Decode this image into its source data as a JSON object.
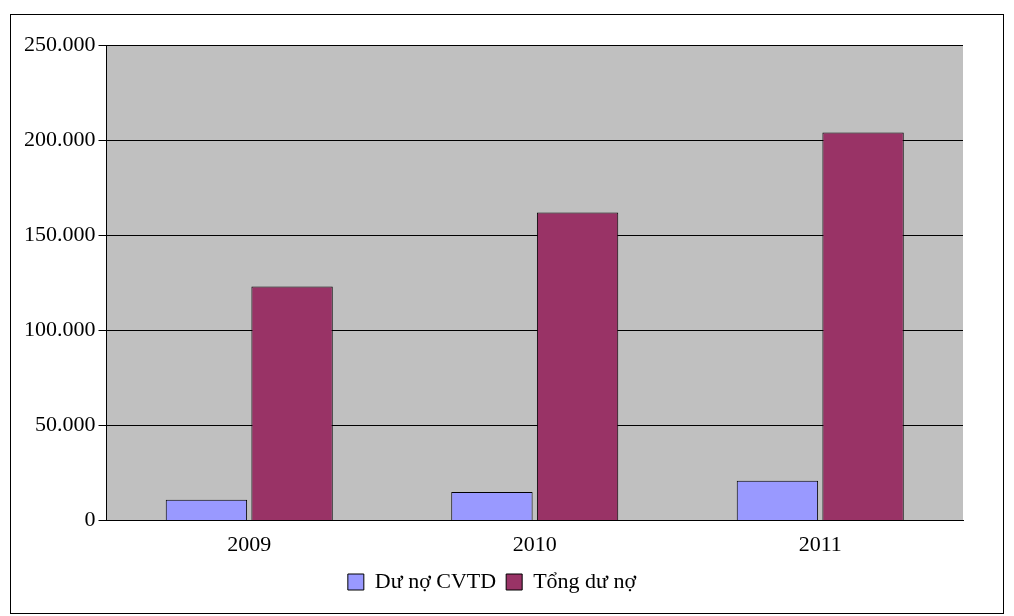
{
  "chart_data": {
    "type": "bar",
    "categories": [
      "2009",
      "2010",
      "2011"
    ],
    "series": [
      {
        "name": "Dư nợ CVTD",
        "color": "#9999ff",
        "values": [
          11000,
          15000,
          21000
        ]
      },
      {
        "name": "Tổng dư nợ",
        "color": "#993366",
        "values": [
          123000,
          162000,
          204000
        ]
      }
    ],
    "ylim": [
      0,
      250000
    ],
    "yticks": [
      {
        "value": 0,
        "label": "0"
      },
      {
        "value": 50000,
        "label": "50.000"
      },
      {
        "value": 100000,
        "label": "100.000"
      },
      {
        "value": 150000,
        "label": "150.000"
      },
      {
        "value": 200000,
        "label": "200.000"
      },
      {
        "value": 250000,
        "label": "250.000"
      }
    ],
    "grid": "y",
    "legend": "bottom"
  }
}
